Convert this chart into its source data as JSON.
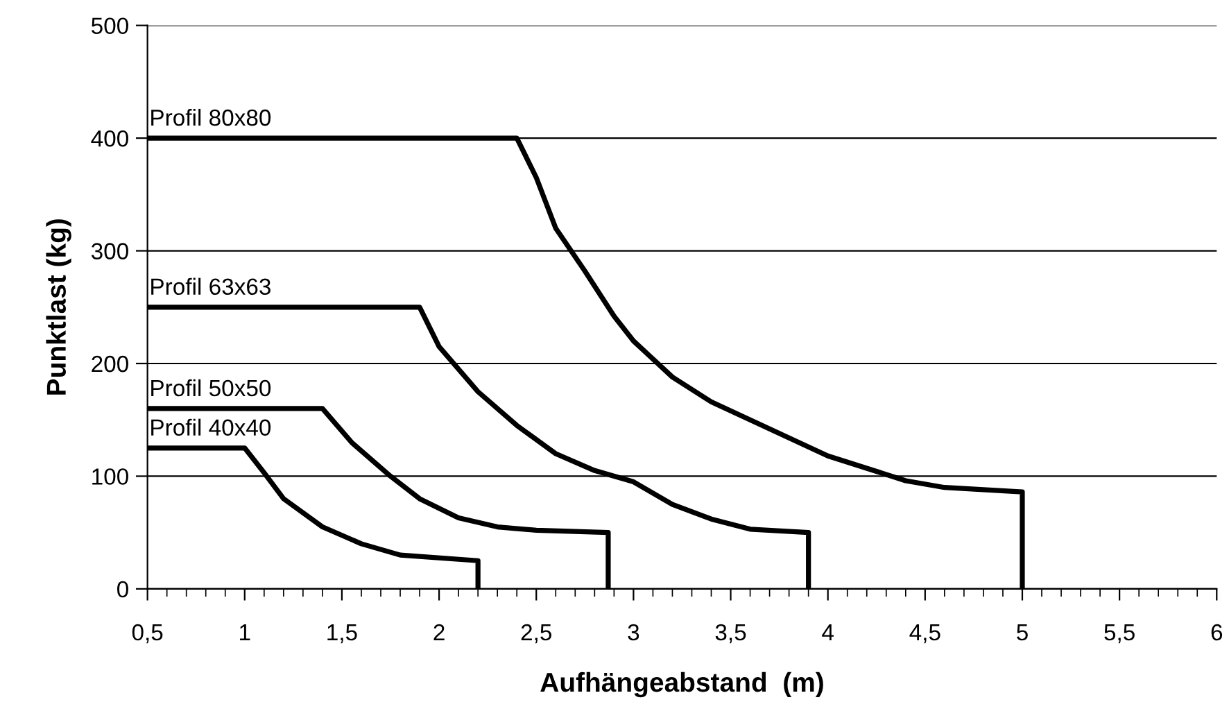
{
  "chart_data": {
    "type": "line",
    "xlabel": "Aufhängeabstand  (m)",
    "ylabel": "Punktlast (kg)",
    "series": [
      {
        "name": "Profil 40x40",
        "color": "#000000",
        "x": [
          0.5,
          1.0,
          1.1,
          1.2,
          1.4,
          1.6,
          1.8,
          2.2,
          2.2
        ],
        "values": [
          125,
          125,
          103,
          80,
          55,
          40,
          30,
          25,
          0
        ]
      },
      {
        "name": "Profil 50x50",
        "color": "#000000",
        "x": [
          0.5,
          1.4,
          1.55,
          1.75,
          1.9,
          2.1,
          2.3,
          2.5,
          2.87,
          2.87
        ],
        "values": [
          160,
          160,
          130,
          100,
          80,
          63,
          55,
          52,
          50,
          0
        ]
      },
      {
        "name": "Profil 63x63",
        "color": "#000000",
        "x": [
          0.5,
          1.9,
          2.0,
          2.2,
          2.4,
          2.6,
          2.8,
          3.0,
          3.2,
          3.4,
          3.6,
          3.9,
          3.9
        ],
        "values": [
          250,
          250,
          215,
          175,
          145,
          120,
          105,
          95,
          75,
          62,
          53,
          50,
          0
        ]
      },
      {
        "name": "Profil 80x80",
        "color": "#000000",
        "x": [
          0.5,
          2.4,
          2.5,
          2.6,
          2.75,
          2.9,
          3.0,
          3.2,
          3.4,
          3.7,
          4.0,
          4.4,
          4.6,
          5.0,
          5.0
        ],
        "values": [
          400,
          400,
          365,
          320,
          282,
          242,
          220,
          188,
          166,
          142,
          118,
          96,
          90,
          86,
          0
        ]
      }
    ],
    "xlim": [
      0.5,
      6
    ],
    "ylim": [
      0,
      500
    ],
    "xticks": [
      {
        "value": 0.5,
        "label": "0,5"
      },
      {
        "value": 0.6,
        "label": null
      },
      {
        "value": 0.7,
        "label": null
      },
      {
        "value": 0.8,
        "label": null
      },
      {
        "value": 0.9,
        "label": null
      },
      1,
      {
        "value": 1.1,
        "label": null
      },
      {
        "value": 1.2,
        "label": null
      },
      {
        "value": 1.3,
        "label": null
      },
      {
        "value": 1.4,
        "label": null
      },
      {
        "value": 1.5,
        "label": "1,5"
      },
      {
        "value": 1.6,
        "label": null
      },
      {
        "value": 1.7,
        "label": null
      },
      {
        "value": 1.8,
        "label": null
      },
      {
        "value": 1.9,
        "label": null
      },
      2,
      {
        "value": 2.1,
        "label": null
      },
      {
        "value": 2.2,
        "label": null
      },
      {
        "value": 2.3,
        "label": null
      },
      {
        "value": 2.4,
        "label": null
      },
      {
        "value": 2.5,
        "label": "2,5"
      },
      {
        "value": 2.6,
        "label": null
      },
      {
        "value": 2.7,
        "label": null
      },
      {
        "value": 2.8,
        "label": null
      },
      {
        "value": 2.9,
        "label": null
      },
      3,
      {
        "value": 3.1,
        "label": null
      },
      {
        "value": 3.2,
        "label": null
      },
      {
        "value": 3.3,
        "label": null
      },
      {
        "value": 3.4,
        "label": null
      },
      {
        "value": 3.5,
        "label": "3,5"
      },
      {
        "value": 3.6,
        "label": null
      },
      {
        "value": 3.7,
        "label": null
      },
      {
        "value": 3.8,
        "label": null
      },
      {
        "value": 3.9,
        "label": null
      },
      4,
      {
        "value": 4.1,
        "label": null
      },
      {
        "value": 4.2,
        "label": null
      },
      {
        "value": 4.3,
        "label": null
      },
      {
        "value": 4.4,
        "label": null
      },
      {
        "value": 4.5,
        "label": "4,5"
      },
      {
        "value": 4.6,
        "label": null
      },
      {
        "value": 4.7,
        "label": null
      },
      {
        "value": 4.8,
        "label": null
      },
      {
        "value": 4.9,
        "label": null
      },
      5,
      {
        "value": 5.1,
        "label": null
      },
      {
        "value": 5.2,
        "label": null
      },
      {
        "value": 5.3,
        "label": null
      },
      {
        "value": 5.4,
        "label": null
      },
      {
        "value": 5.5,
        "label": "5,5"
      },
      {
        "value": 5.6,
        "label": null
      },
      {
        "value": 5.7,
        "label": null
      },
      {
        "value": 5.8,
        "label": null
      },
      {
        "value": 5.9,
        "label": null
      },
      6
    ],
    "yticks": [
      0,
      100,
      200,
      300,
      400,
      500
    ],
    "grid": "y",
    "legend": false,
    "marker": "none",
    "line_style": "solid"
  }
}
